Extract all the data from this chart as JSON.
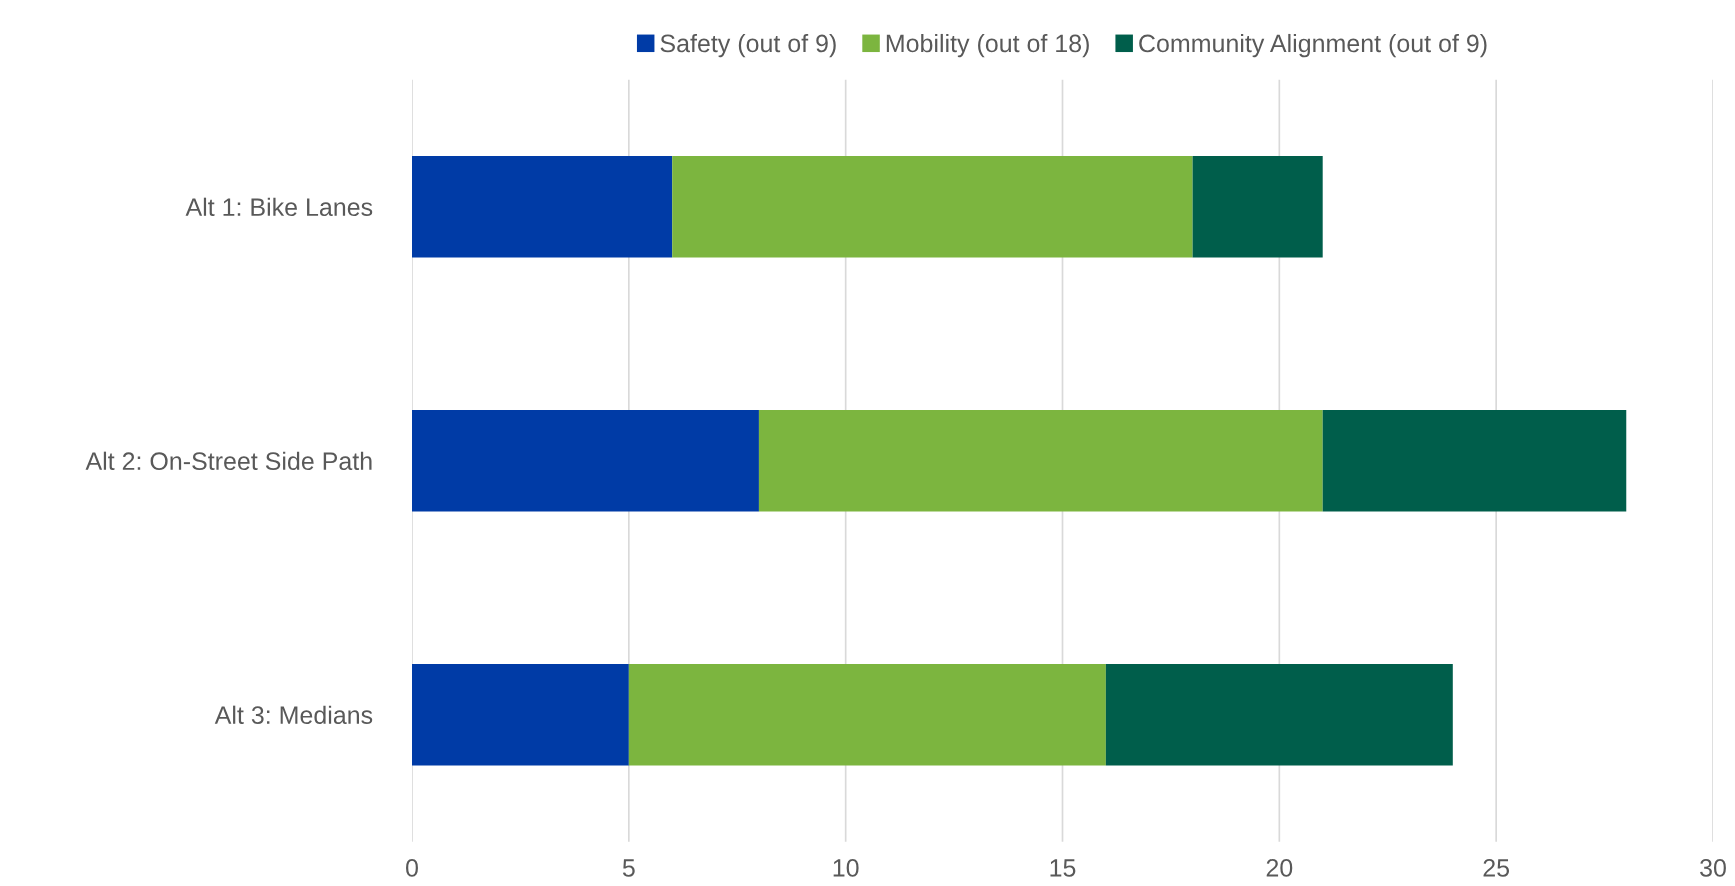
{
  "chart_data": {
    "type": "bar",
    "orientation": "horizontal",
    "stacked": true,
    "categories": [
      "Alt 1: Bike Lanes",
      "Alt 2: On-Street Side Path",
      "Alt 3: Medians"
    ],
    "series": [
      {
        "name": "Safety (out of 9)",
        "color": "#003ba6",
        "values": [
          6,
          8,
          5
        ]
      },
      {
        "name": "Mobility (out of 18)",
        "color": "#7cb53f",
        "values": [
          12,
          13,
          11
        ]
      },
      {
        "name": "Community Alignment (out of 9)",
        "color": "#005e4b",
        "values": [
          3,
          7,
          8
        ]
      }
    ],
    "xlim": [
      0,
      30
    ],
    "xticks": [
      0,
      5,
      10,
      15,
      20,
      25,
      30
    ],
    "grid": "x",
    "legend": "top"
  }
}
